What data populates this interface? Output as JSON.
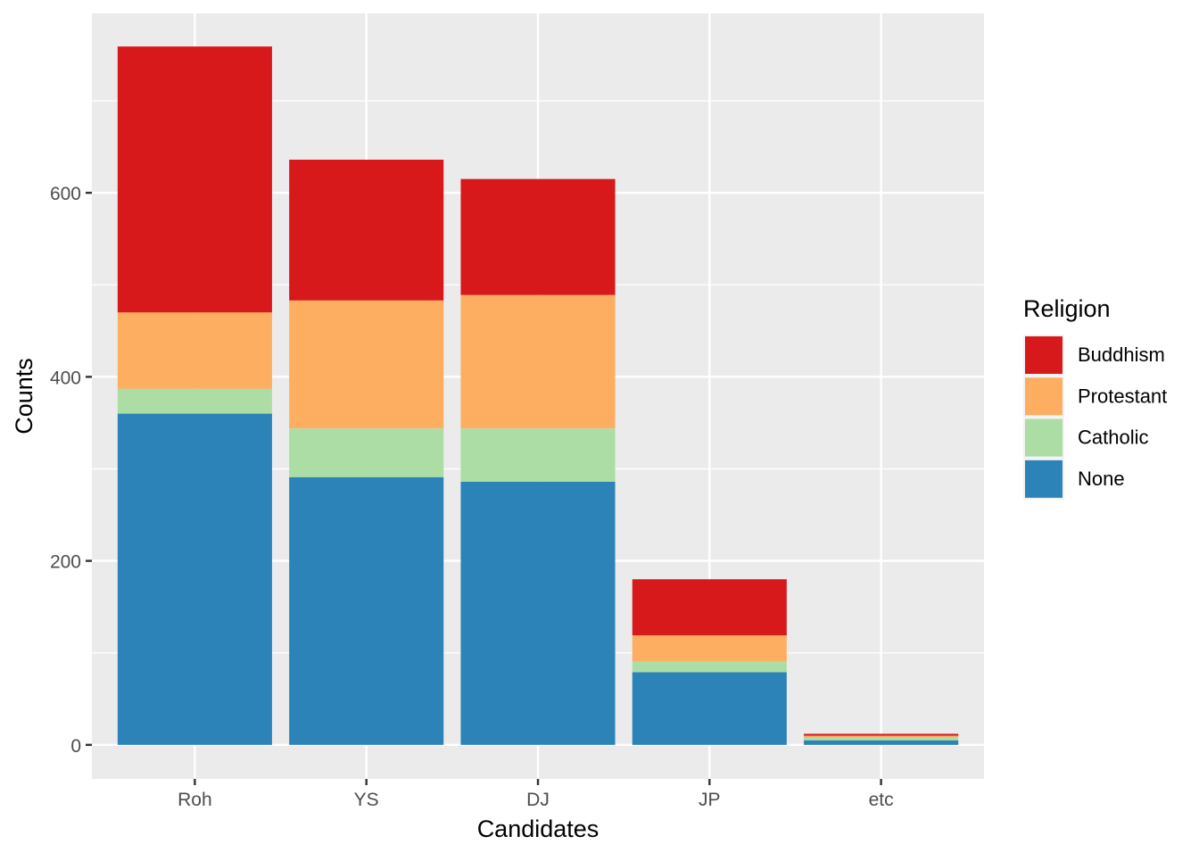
{
  "chart_data": {
    "type": "bar",
    "stacked": true,
    "xlabel": "Candidates",
    "ylabel": "Counts",
    "categories": [
      "Roh",
      "YS",
      "DJ",
      "JP",
      "etc"
    ],
    "ylim": [
      -37,
      795
    ],
    "yticks": [
      0,
      200,
      400,
      600
    ],
    "grid": true,
    "legend": {
      "title": "Religion",
      "position": "right"
    },
    "series": [
      {
        "name": "None",
        "color": "#2C83B8",
        "values": [
          360,
          291,
          286,
          79,
          5
        ]
      },
      {
        "name": "Catholic",
        "color": "#ABDDA4",
        "values": [
          27,
          53,
          58,
          12,
          3
        ]
      },
      {
        "name": "Protestant",
        "color": "#FDAE61",
        "values": [
          83,
          139,
          145,
          28,
          2
        ]
      },
      {
        "name": "Buddhism",
        "color": "#D7191C",
        "values": [
          289,
          153,
          126,
          61,
          2
        ]
      }
    ]
  }
}
